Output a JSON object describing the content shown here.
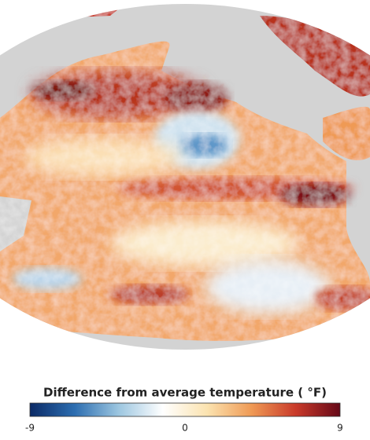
{
  "legend": {
    "title": "Difference from average temperature ( °F)",
    "range": [
      -9,
      9
    ],
    "ticks": [
      -9,
      0,
      9
    ],
    "colors": [
      "#0b2a66",
      "#2c6db0",
      "#9cc6e0",
      "#ffffff",
      "#fbe3b0",
      "#ef9a55",
      "#c93a2a",
      "#650818"
    ]
  }
}
